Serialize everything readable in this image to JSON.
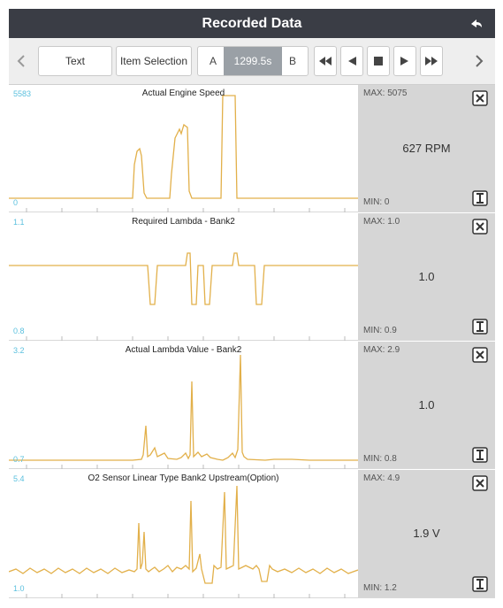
{
  "header": {
    "title": "Recorded Data"
  },
  "toolbar": {
    "text_label": "Text",
    "item_selection_label": "Item Selection",
    "marker_a": "A",
    "marker_b": "B",
    "time_value": "1299.5s",
    "icons": [
      "chevron-left-icon",
      "rewind-icon",
      "step-back-icon",
      "stop-icon",
      "play-icon",
      "fast-forward-icon",
      "chevron-right-icon"
    ]
  },
  "colors": {
    "trace": "#e2b04a",
    "axis_label": "#5bc0de",
    "side_panel": "#d6d6d6",
    "header_bg": "#3a3d45"
  },
  "panels": [
    {
      "title": "Actual Engine Speed",
      "axis_max": "5583",
      "axis_min": "0",
      "max_text": "MAX: 5075",
      "min_text": "MIN: 0",
      "value_text": "627 RPM"
    },
    {
      "title": "Required Lambda - Bank2",
      "axis_max": "1.1",
      "axis_min": "0.8",
      "max_text": "MAX: 1.0",
      "min_text": "MIN: 0.9",
      "value_text": "1.0"
    },
    {
      "title": "Actual Lambda Value - Bank2",
      "axis_max": "3.2",
      "axis_min": "0.7",
      "max_text": "MAX: 2.9",
      "min_text": "MIN: 0.8",
      "value_text": "1.0"
    },
    {
      "title": "O2 Sensor Linear Type Bank2 Upstream(Option)",
      "axis_max": "5.4",
      "axis_min": "1.0",
      "max_text": "MAX: 4.9",
      "min_text": "MIN: 1.2",
      "value_text": "1.9 V"
    }
  ]
}
